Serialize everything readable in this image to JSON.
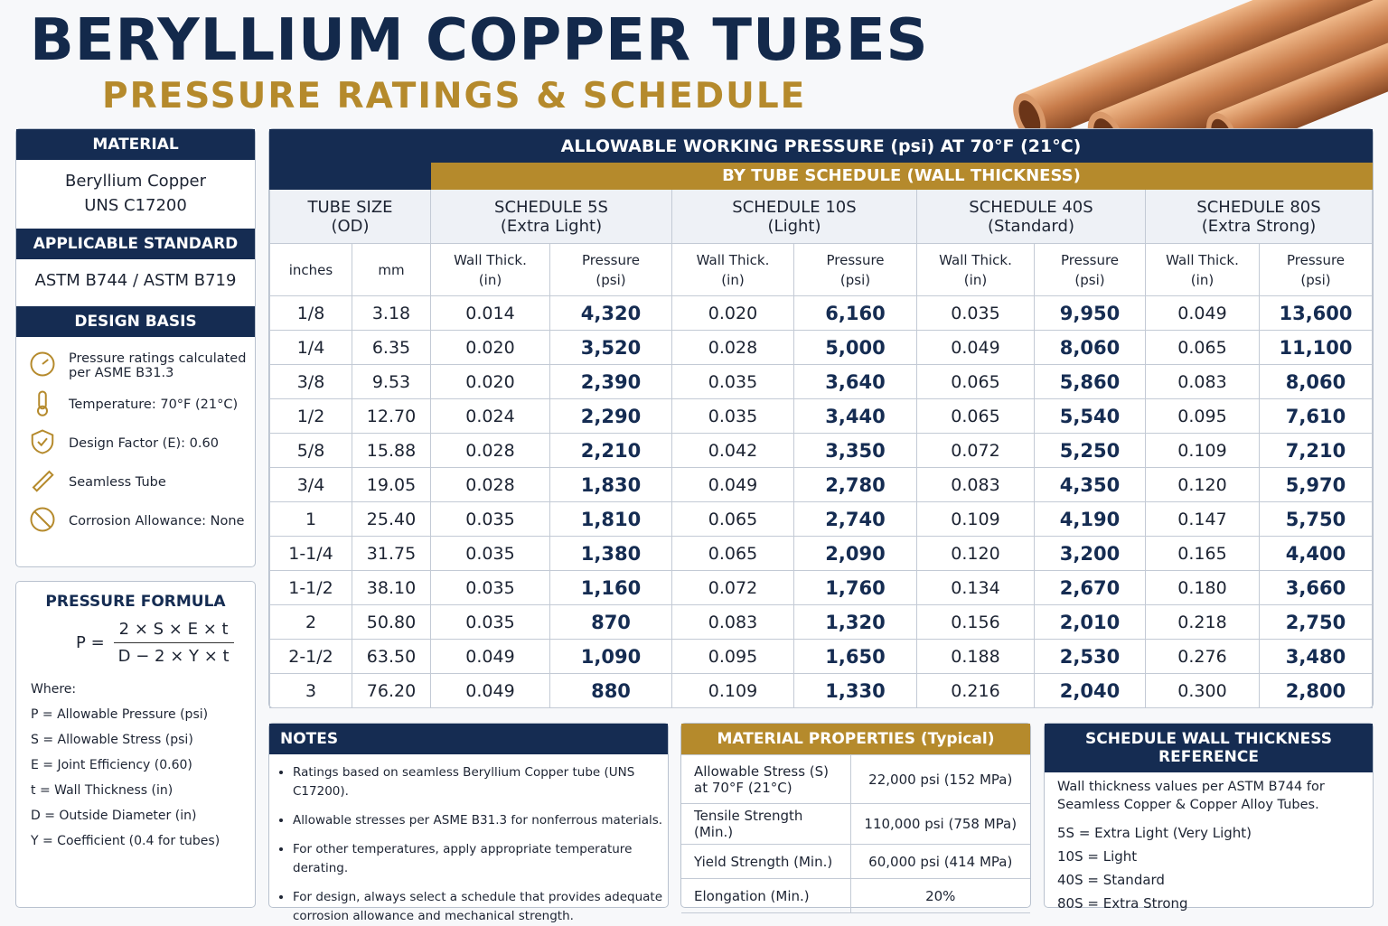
{
  "header": {
    "title": "BERYLLIUM COPPER TUBES",
    "subtitle": "PRESSURE RATINGS & SCHEDULE"
  },
  "material": {
    "heading": "MATERIAL",
    "lines": [
      "Beryllium Copper",
      "UNS C17200"
    ]
  },
  "standard": {
    "heading": "APPLICABLE STANDARD",
    "text": "ASTM B744 / ASTM B719"
  },
  "design_basis": {
    "heading": "DESIGN BASIS",
    "items": [
      "Pressure ratings calculated per ASME B31.3",
      "Temperature: 70°F (21°C)",
      "Design Factor (E): 0.60",
      "Seamless Tube",
      "Corrosion Allowance: None"
    ]
  },
  "formula": {
    "heading": "PRESSURE FORMULA",
    "lhs": "P =",
    "numerator": "2 × S × E × t",
    "denominator": "D − 2 × Y × t",
    "where": "Where:",
    "defs": [
      "P = Allowable Pressure (psi)",
      "S = Allowable Stress (psi)",
      "E = Joint Efficiency (0.60)",
      "t = Wall Thickness (in)",
      "D = Outside Diameter (in)",
      "Y = Coefficient (0.4 for tubes)"
    ]
  },
  "table": {
    "title": "ALLOWABLE WORKING PRESSURE (psi) AT 70°F (21°C)",
    "subtitle": "BY TUBE SCHEDULE (WALL THICKNESS)",
    "size_header": [
      "TUBE SIZE",
      "(OD)"
    ],
    "schedules": [
      [
        "SCHEDULE 5S",
        "(Extra Light)"
      ],
      [
        "SCHEDULE 10S",
        "(Light)"
      ],
      [
        "SCHEDULE 40S",
        "(Standard)"
      ],
      [
        "SCHEDULE 80S",
        "(Extra Strong)"
      ]
    ],
    "size_columns": [
      "inches",
      "mm"
    ],
    "sub_headers": [
      [
        "Wall Thick.",
        "(in)"
      ],
      [
        "Pressure",
        "(psi)"
      ]
    ],
    "rows": [
      [
        "1/8",
        "3.18",
        "0.014",
        "4,320",
        "0.020",
        "6,160",
        "0.035",
        "9,950",
        "0.049",
        "13,600"
      ],
      [
        "1/4",
        "6.35",
        "0.020",
        "3,520",
        "0.028",
        "5,000",
        "0.049",
        "8,060",
        "0.065",
        "11,100"
      ],
      [
        "3/8",
        "9.53",
        "0.020",
        "2,390",
        "0.035",
        "3,640",
        "0.065",
        "5,860",
        "0.083",
        "8,060"
      ],
      [
        "1/2",
        "12.70",
        "0.024",
        "2,290",
        "0.035",
        "3,440",
        "0.065",
        "5,540",
        "0.095",
        "7,610"
      ],
      [
        "5/8",
        "15.88",
        "0.028",
        "2,210",
        "0.042",
        "3,350",
        "0.072",
        "5,250",
        "0.109",
        "7,210"
      ],
      [
        "3/4",
        "19.05",
        "0.028",
        "1,830",
        "0.049",
        "2,780",
        "0.083",
        "4,350",
        "0.120",
        "5,970"
      ],
      [
        "1",
        "25.40",
        "0.035",
        "1,810",
        "0.065",
        "2,740",
        "0.109",
        "4,190",
        "0.147",
        "5,750"
      ],
      [
        "1-1/4",
        "31.75",
        "0.035",
        "1,380",
        "0.065",
        "2,090",
        "0.120",
        "3,200",
        "0.165",
        "4,400"
      ],
      [
        "1-1/2",
        "38.10",
        "0.035",
        "1,160",
        "0.072",
        "1,760",
        "0.134",
        "2,670",
        "0.180",
        "3,660"
      ],
      [
        "2",
        "50.80",
        "0.035",
        "870",
        "0.083",
        "1,320",
        "0.156",
        "2,010",
        "0.218",
        "2,750"
      ],
      [
        "2-1/2",
        "63.50",
        "0.049",
        "1,090",
        "0.095",
        "1,650",
        "0.188",
        "2,530",
        "0.276",
        "3,480"
      ],
      [
        "3",
        "76.20",
        "0.049",
        "880",
        "0.109",
        "1,330",
        "0.216",
        "2,040",
        "0.300",
        "2,800"
      ]
    ]
  },
  "notes": {
    "heading": "NOTES",
    "items": [
      "Ratings based on seamless Beryllium Copper tube (UNS C17200).",
      "Allowable stresses per ASME B31.3 for nonferrous materials.",
      "For other temperatures, apply appropriate temperature derating.",
      "For design, always select a schedule that provides adequate corrosion allowance and mechanical strength."
    ]
  },
  "properties": {
    "heading": "MATERIAL PROPERTIES (Typical)",
    "rows": [
      [
        "Allowable Stress (S) at 70°F (21°C)",
        "22,000 psi (152 MPa)"
      ],
      [
        "Tensile Strength (Min.)",
        "110,000 psi (758 MPa)"
      ],
      [
        "Yield Strength (Min.)",
        "60,000 psi (414 MPa)"
      ],
      [
        "Elongation (Min.)",
        "20%"
      ]
    ]
  },
  "reference": {
    "heading": "SCHEDULE WALL THICKNESS REFERENCE",
    "text": "Wall thickness values per ASTM B744 for Seamless Copper & Copper Alloy Tubes.",
    "items": [
      "5S = Extra Light (Very Light)",
      "10S = Light",
      "40S = Standard",
      "80S = Extra Strong"
    ]
  }
}
